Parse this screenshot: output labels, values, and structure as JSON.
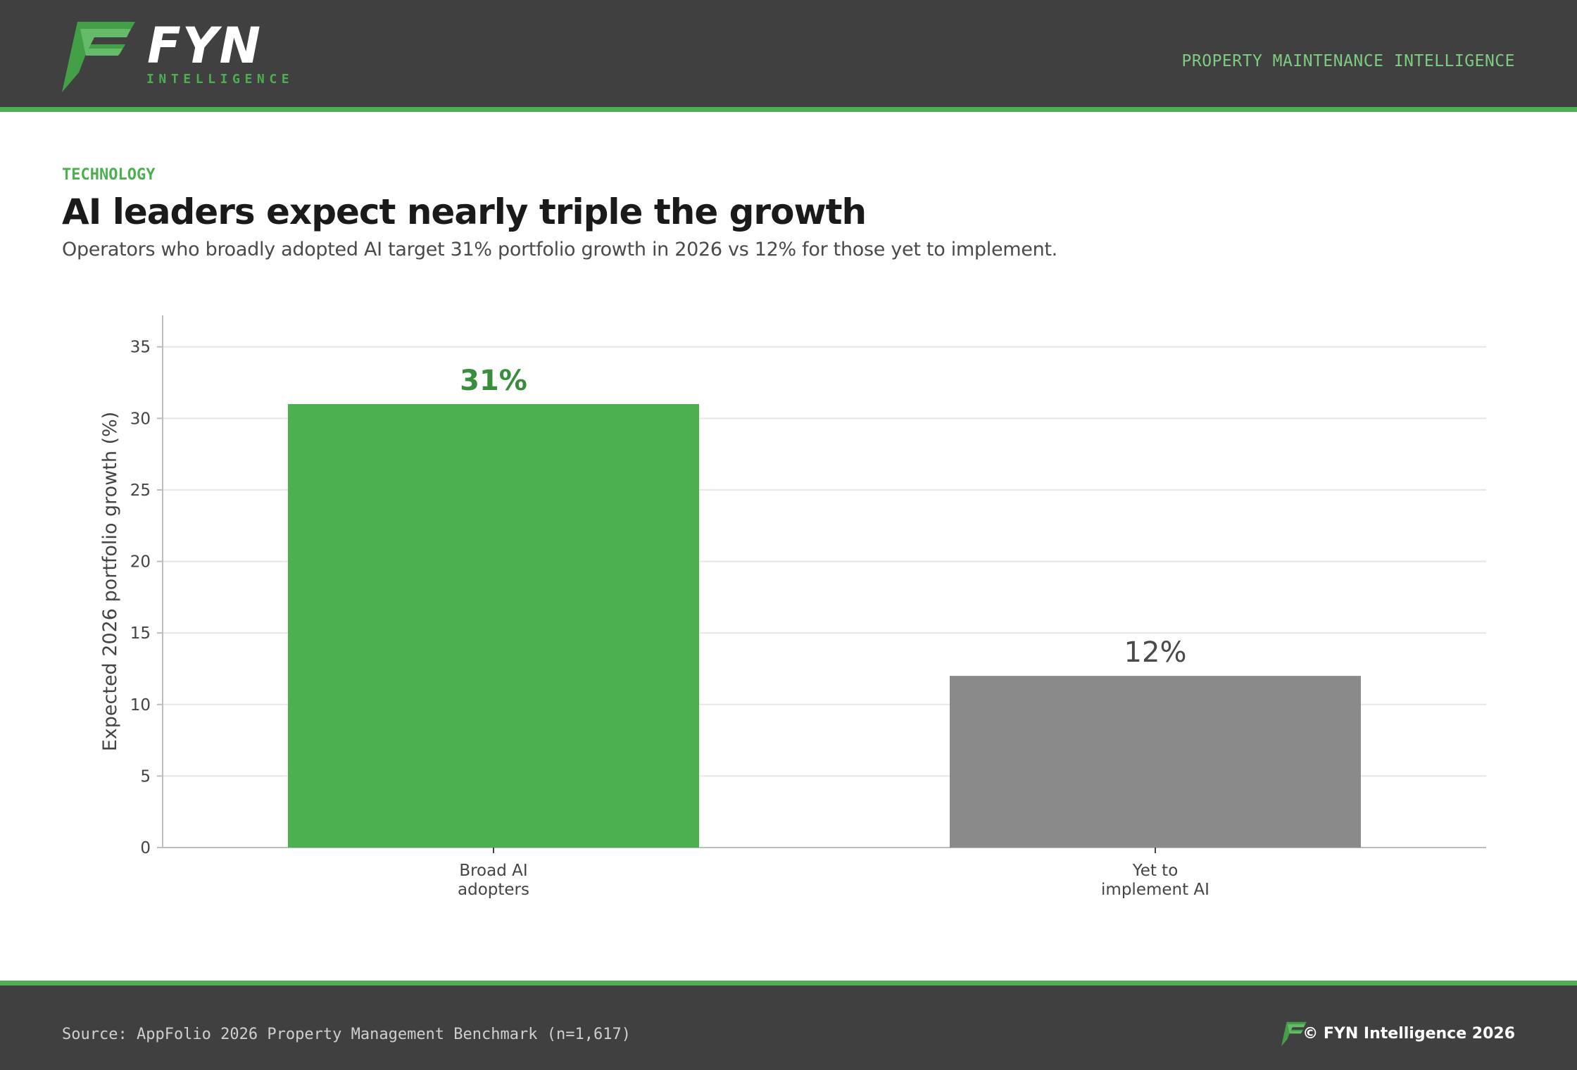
{
  "header": {
    "brand": "FYN",
    "brand_sub": "INTELLIGENCE",
    "tagline": "PROPERTY MAINTENANCE INTELLIGENCE"
  },
  "article": {
    "kicker": "TECHNOLOGY",
    "title": "AI leaders expect nearly triple the growth",
    "subtitle": "Operators who broadly adopted AI target 31% portfolio growth in 2026 vs 12% for those yet to implement."
  },
  "chart_data": {
    "type": "bar",
    "categories": [
      [
        "Broad AI",
        "adopters"
      ],
      [
        "Yet to",
        "implement AI"
      ]
    ],
    "values": [
      31,
      12
    ],
    "value_labels": [
      "31%",
      "12%"
    ],
    "colors": [
      "#4caf50",
      "#8a8a8a"
    ],
    "label_colors": [
      "#388e3c",
      "#4a4a4a"
    ],
    "title": "",
    "xlabel": "",
    "ylabel": "Expected 2026 portfolio growth (%)",
    "ylim": [
      0,
      37.2
    ],
    "yticks": [
      0,
      5,
      10,
      15,
      20,
      25,
      30,
      35
    ],
    "grid": true
  },
  "footer": {
    "source": "Source: AppFolio 2026 Property Management Benchmark (n=1,617)",
    "copyright": "© FYN Intelligence 2026"
  },
  "colors": {
    "header_bg": "#404040",
    "accent": "#4caf50",
    "tagline": "#7dcc82"
  }
}
